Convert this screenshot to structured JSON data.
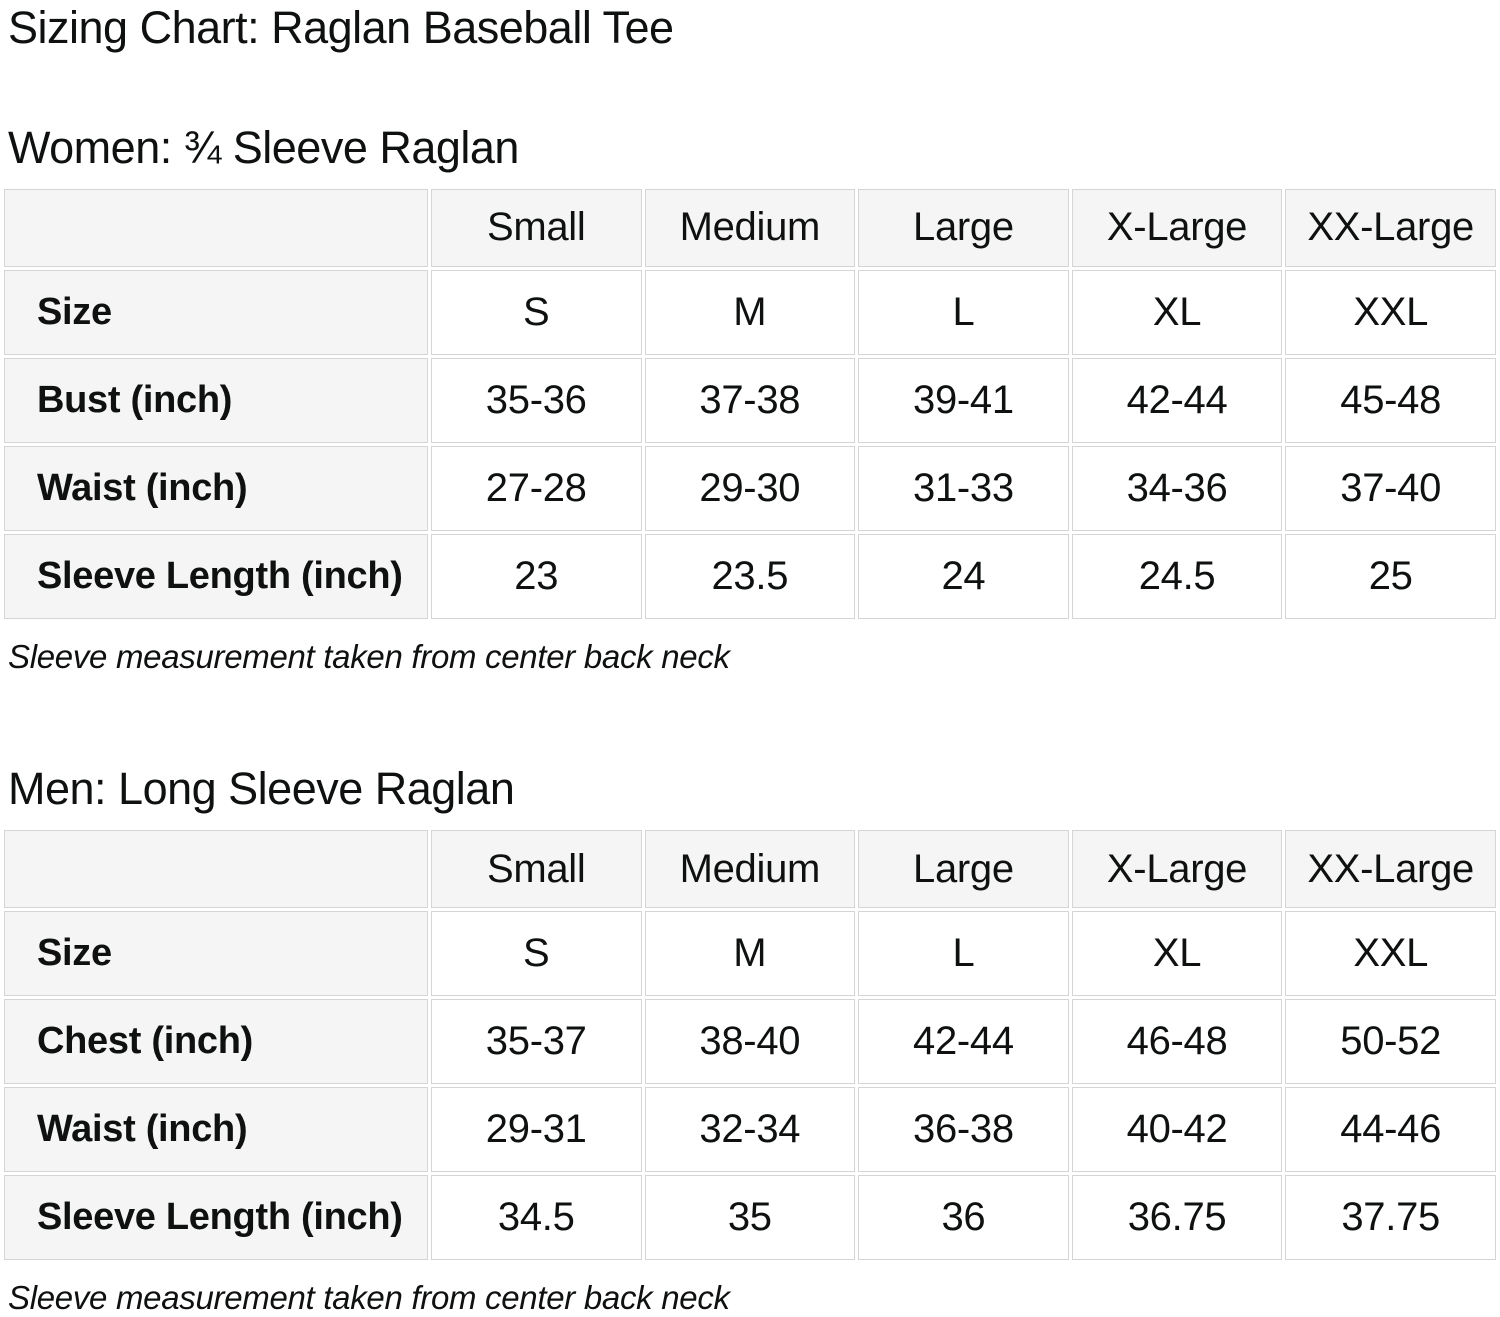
{
  "page": {
    "title": "Sizing Chart: Raglan Baseball Tee"
  },
  "colors": {
    "page_bg": "#ffffff",
    "header_cell_bg": "#f5f5f5",
    "data_cell_bg": "#ffffff",
    "cell_border": "#d5d5d5",
    "text": "#0f1111"
  },
  "sections": [
    {
      "heading": "Women: ¾ Sleeve Raglan",
      "note": "Sleeve measurement taken from center back neck",
      "table": {
        "column_headers": [
          "Small",
          "Medium",
          "Large",
          "X-Large",
          "XX-Large"
        ],
        "rows": [
          {
            "label": "Size",
            "values": [
              "S",
              "M",
              "L",
              "XL",
              "XXL"
            ]
          },
          {
            "label": "Bust (inch)",
            "values": [
              "35-36",
              "37-38",
              "39-41",
              "42-44",
              "45-48"
            ]
          },
          {
            "label": "Waist (inch)",
            "values": [
              "27-28",
              "29-30",
              "31-33",
              "34-36",
              "37-40"
            ]
          },
          {
            "label": "Sleeve Length (inch)",
            "values": [
              "23",
              "23.5",
              "24",
              "24.5",
              "25"
            ]
          }
        ]
      }
    },
    {
      "heading": "Men: Long Sleeve Raglan",
      "note": "Sleeve measurement taken from center back neck",
      "table": {
        "column_headers": [
          "Small",
          "Medium",
          "Large",
          "X-Large",
          "XX-Large"
        ],
        "rows": [
          {
            "label": "Size",
            "values": [
              "S",
              "M",
              "L",
              "XL",
              "XXL"
            ]
          },
          {
            "label": "Chest (inch)",
            "values": [
              "35-37",
              "38-40",
              "42-44",
              "46-48",
              "50-52"
            ]
          },
          {
            "label": "Waist (inch)",
            "values": [
              "29-31",
              "32-34",
              "36-38",
              "40-42",
              "44-46"
            ]
          },
          {
            "label": "Sleeve Length (inch)",
            "values": [
              "34.5",
              "35",
              "36",
              "36.75",
              "37.75"
            ]
          }
        ]
      }
    }
  ]
}
